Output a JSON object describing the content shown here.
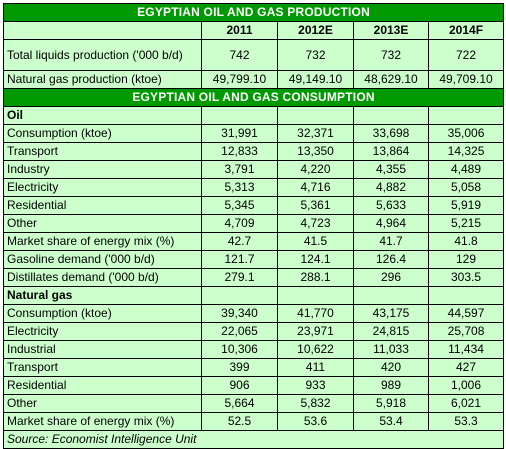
{
  "production": {
    "title": "EGYPTIAN OIL AND GAS PRODUCTION",
    "years": [
      "2011",
      "2012E",
      "2013E",
      "2014F"
    ],
    "rows": [
      {
        "label": "Total liquids production ('000 b/d)",
        "values": [
          "742",
          "732",
          "732",
          "722"
        ]
      },
      {
        "label": "Natural  gas production (ktoe)",
        "values": [
          "49,799.10",
          "49,149.10",
          "48,629.10",
          "49,709.10"
        ]
      }
    ]
  },
  "consumption": {
    "title": "EGYPTIAN OIL AND GAS CONSUMPTION",
    "oil": {
      "heading": "Oil",
      "rows": [
        {
          "label": "Consumption (ktoe)",
          "values": [
            "31,991",
            "32,371",
            "33,698",
            "35,006"
          ]
        },
        {
          "label": "Transport",
          "values": [
            "12,833",
            "13,350",
            "13,864",
            "14,325"
          ]
        },
        {
          "label": "Industry",
          "values": [
            "3,791",
            "4,220",
            "4,355",
            "4,489"
          ]
        },
        {
          "label": "Electricity",
          "values": [
            "5,313",
            "4,716",
            "4,882",
            "5,058"
          ]
        },
        {
          "label": "Residential",
          "values": [
            "5,345",
            "5,361",
            "5,633",
            "5,919"
          ]
        },
        {
          "label": "Other",
          "values": [
            "4,709",
            "4,723",
            "4,964",
            "5,215"
          ]
        },
        {
          "label": "Market share  of energy mix (%)",
          "values": [
            "42.7",
            "41.5",
            "41.7",
            "41.8"
          ]
        },
        {
          "label": "Gasoline demand ('000 b/d)",
          "values": [
            "121.7",
            "124.1",
            "126.4",
            "129"
          ]
        },
        {
          "label": "Distillates demand ('000 b/d)",
          "values": [
            "279.1",
            "288.1",
            "296",
            "303.5"
          ]
        }
      ]
    },
    "gas": {
      "heading": "Natural gas",
      "rows": [
        {
          "label": "Consumption (ktoe)",
          "values": [
            "39,340",
            "41,770",
            "43,175",
            "44,597"
          ]
        },
        {
          "label": "Electricity",
          "values": [
            "22,065",
            "23,971",
            "24,815",
            "25,708"
          ]
        },
        {
          "label": "Industrial",
          "values": [
            "10,306",
            "10,622",
            "11,033",
            "11,434"
          ]
        },
        {
          "label": "Transport",
          "values": [
            "399",
            "411",
            "420",
            "427"
          ]
        },
        {
          "label": "Residential",
          "values": [
            "906",
            "933",
            "989",
            "1,006"
          ]
        },
        {
          "label": "Other",
          "values": [
            "5,664",
            "5,832",
            "5,918",
            "6,021"
          ]
        },
        {
          "label": "Market share  of energy mix (%)",
          "values": [
            "52.5",
            "53.6",
            "53.4",
            "53.3"
          ]
        }
      ]
    }
  },
  "source": "Source:  Economist Intelligence Unit"
}
